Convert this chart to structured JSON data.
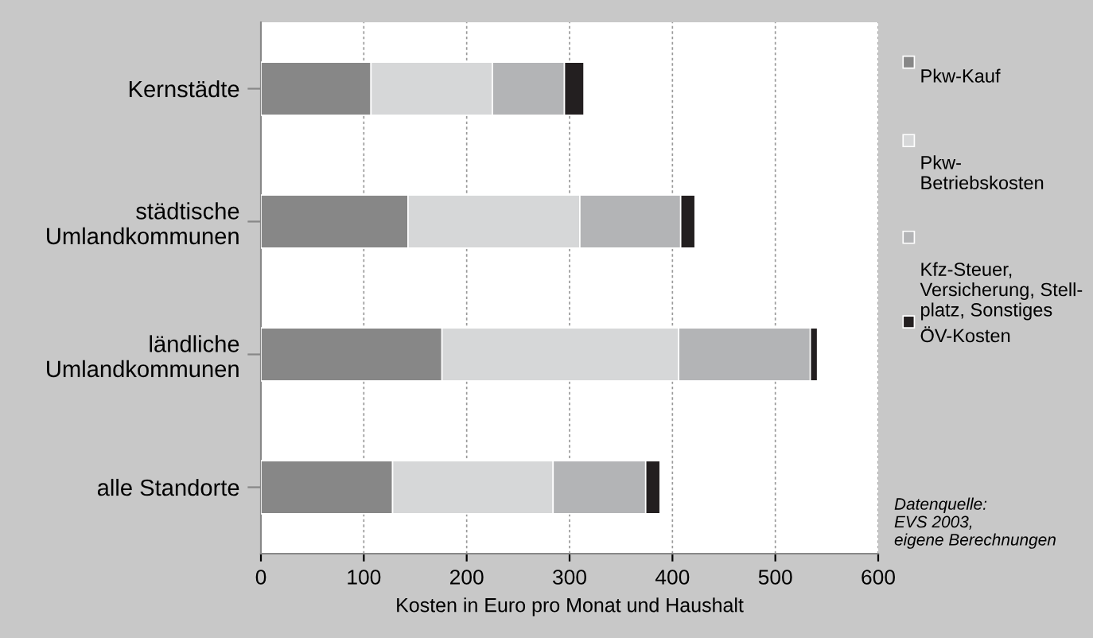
{
  "chart_data": {
    "type": "bar",
    "orientation": "horizontal",
    "stacked": true,
    "categories": [
      "Kernstädte",
      "städtische\nUmlandkommunen",
      "ländliche\nUmlandkommunen",
      "alle Standorte"
    ],
    "series": [
      {
        "name": "Pkw-Kauf",
        "color": "#878787",
        "values": [
          107,
          143,
          176,
          128
        ]
      },
      {
        "name": "Pkw-\nBetriebskosten",
        "color": "#d6d7d8",
        "values": [
          118,
          167,
          230,
          156
        ]
      },
      {
        "name": "Kfz-Steuer,\nVersicherung, Stell-\nplatz, Sonstiges",
        "color": "#b3b4b6",
        "values": [
          70,
          98,
          128,
          90
        ]
      },
      {
        "name": "ÖV-Kosten",
        "color": "#231f20",
        "values": [
          19,
          14,
          7,
          14
        ]
      }
    ],
    "xlim": [
      0,
      600
    ],
    "xticks": [
      0,
      100,
      200,
      300,
      400,
      500,
      600
    ],
    "xlabel": "Kosten in Euro pro Monat und Haushalt",
    "grid": "x",
    "legend": "right",
    "annotations": [
      "Datenquelle:\nEVS 2003,\neigene Berechnungen"
    ]
  }
}
